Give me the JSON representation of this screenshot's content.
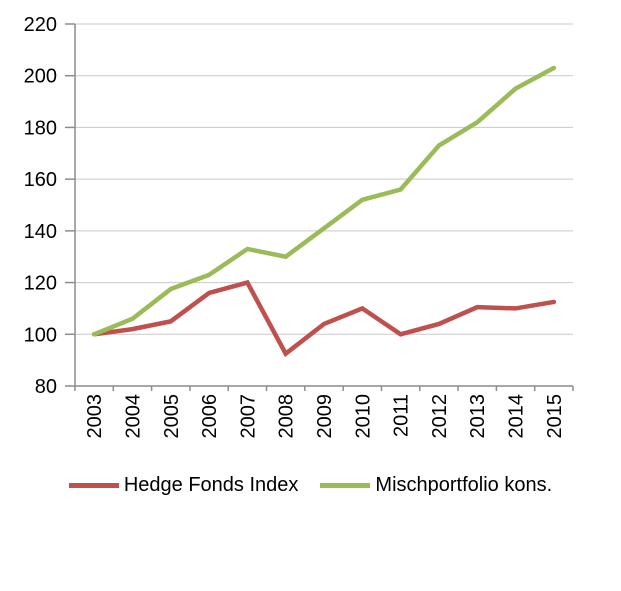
{
  "chart_data": {
    "type": "line",
    "title": "",
    "categories": [
      "2003",
      "2004",
      "2005",
      "2006",
      "2007",
      "2008",
      "2009",
      "2010",
      "2011",
      "2012",
      "2013",
      "2014",
      "2015"
    ],
    "series": [
      {
        "name": "Hedge Fonds Index",
        "color": "#C0504D",
        "values": [
          100,
          102,
          105,
          116,
          120,
          92.5,
          104,
          110,
          100,
          104,
          110.5,
          110,
          112.5
        ]
      },
      {
        "name": "Mischportfolio kons.",
        "color": "#9BBB59",
        "values": [
          100,
          106,
          117.5,
          123,
          133,
          130,
          141,
          152,
          156,
          173,
          182,
          195,
          203
        ]
      }
    ],
    "ylim": [
      80,
      220
    ],
    "ytick_step": 20,
    "yticks": [
      "80",
      "100",
      "120",
      "140",
      "160",
      "180",
      "200",
      "220"
    ],
    "xlabel": "",
    "ylabel": "",
    "grid": true,
    "x_label_rotation": -90,
    "legend_position": "bottom"
  },
  "colors": {
    "axis": "#8C8C8C",
    "gridline": "#C9C9C9",
    "tick": "#8C8C8C",
    "text": "#000000",
    "background": "#FFFFFF"
  }
}
